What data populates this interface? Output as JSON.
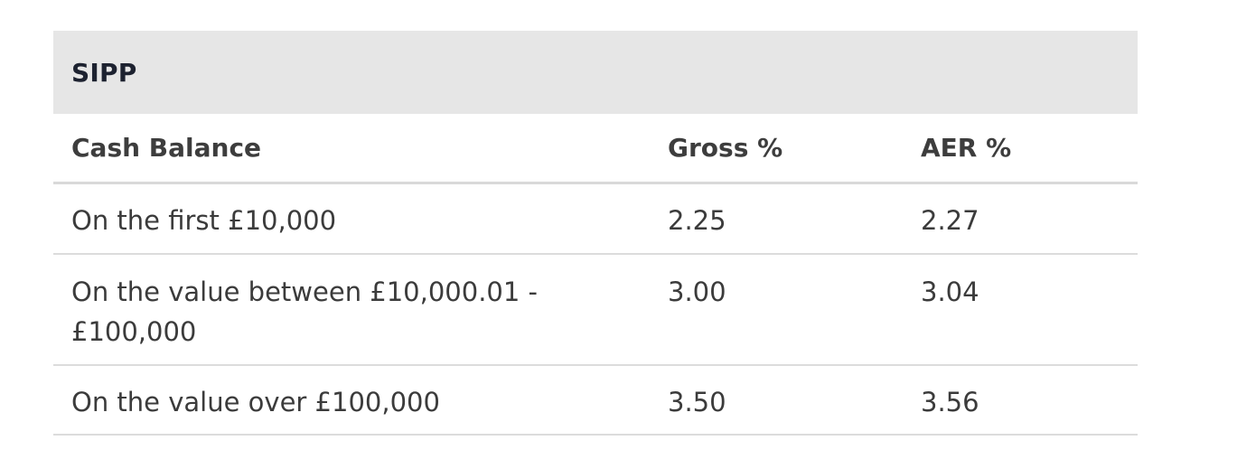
{
  "table": {
    "title": "SIPP",
    "headers": [
      "Cash Balance",
      "Gross %",
      "AER %"
    ],
    "rows": [
      {
        "cash_balance": "On the first £10,000",
        "gross": "2.25",
        "aer": "2.27"
      },
      {
        "cash_balance": "On the value between £10,000.01 - £100,000",
        "gross": "3.00",
        "aer": "3.04"
      },
      {
        "cash_balance": "On the value over £100,000",
        "gross": "3.50",
        "aer": "3.56"
      }
    ]
  }
}
